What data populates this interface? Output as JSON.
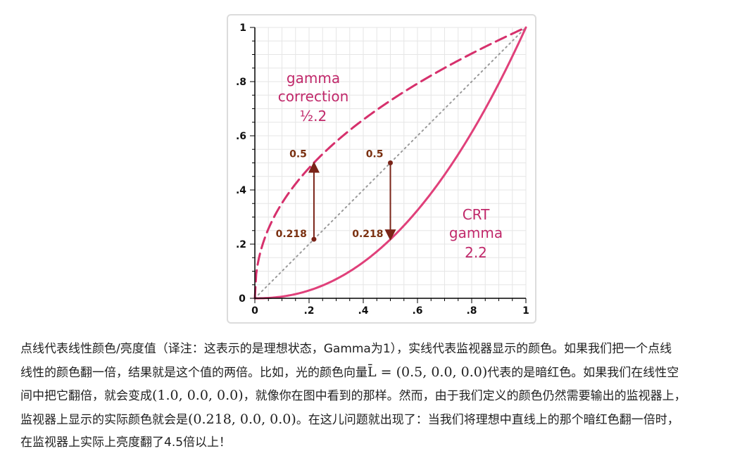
{
  "chart_data": {
    "type": "line",
    "title": "",
    "xlabel": "",
    "ylabel": "",
    "xlim": [
      0,
      1
    ],
    "ylim": [
      0,
      1
    ],
    "x_ticks": [
      "0",
      ".2",
      ".4",
      ".6",
      ".8",
      "1"
    ],
    "y_ticks": [
      "0",
      ".2",
      ".4",
      ".6",
      ".8",
      "1"
    ],
    "grid": true,
    "series": [
      {
        "name": "",
        "style": "dotted",
        "color": "#9a9a9a",
        "gamma": 1.0
      },
      {
        "name": "",
        "style": "dashed",
        "color": "#d6306c",
        "gamma": 0.4545
      },
      {
        "name": "",
        "style": "solid",
        "color": "#e0407a",
        "gamma": 2.2
      }
    ],
    "labels": {
      "gamma_correction": [
        "gamma",
        "correction",
        "½.2"
      ],
      "crt_gamma": [
        "CRT",
        "gamma",
        "2.2"
      ]
    },
    "annotations": [
      {
        "x": 0.218,
        "y_low": 0.218,
        "y_high": 0.5,
        "direction": "up",
        "high_label": "0.5",
        "low_label": "0.218"
      },
      {
        "x": 0.5,
        "y_low": 0.218,
        "y_high": 0.5,
        "direction": "down",
        "high_label": "0.5",
        "low_label": "0.218"
      }
    ],
    "colors": {
      "label": "#c0286a",
      "arrow": "#7a2418",
      "axis": "#000000",
      "grid": "#e6e6e6"
    }
  },
  "caption": {
    "line1": "点线代表线性颜色/亮度值（译注：这表示的是理想状态，Gamma为1），实线代表监视器显示的颜色。如果我们把一个点线",
    "line2a": "线性的颜色翻一倍，结果就是这个值的两倍。比如，光的颜色向量",
    "math_vector": "L̄ = (0.5, 0.0, 0.0)",
    "line2b": "代表的是暗红色。如果我们在线性空",
    "line3a": "间中把它翻倍，就会变成",
    "math_doubled": "(1.0, 0.0, 0.0)",
    "line3b": "，就像你在图中看到的那样。然而，由于我们定义的颜色仍然需要输出的监视器上，",
    "line4a": "监视器上显示的实际颜色就会是",
    "math_actual": "(0.218, 0.0, 0.0)",
    "line4b": "。在这儿问题就出现了：当我们将理想中直线上的那个暗红色翻一倍时，",
    "line5": "在监视器上实际上亮度翻了4.5倍以上！"
  }
}
